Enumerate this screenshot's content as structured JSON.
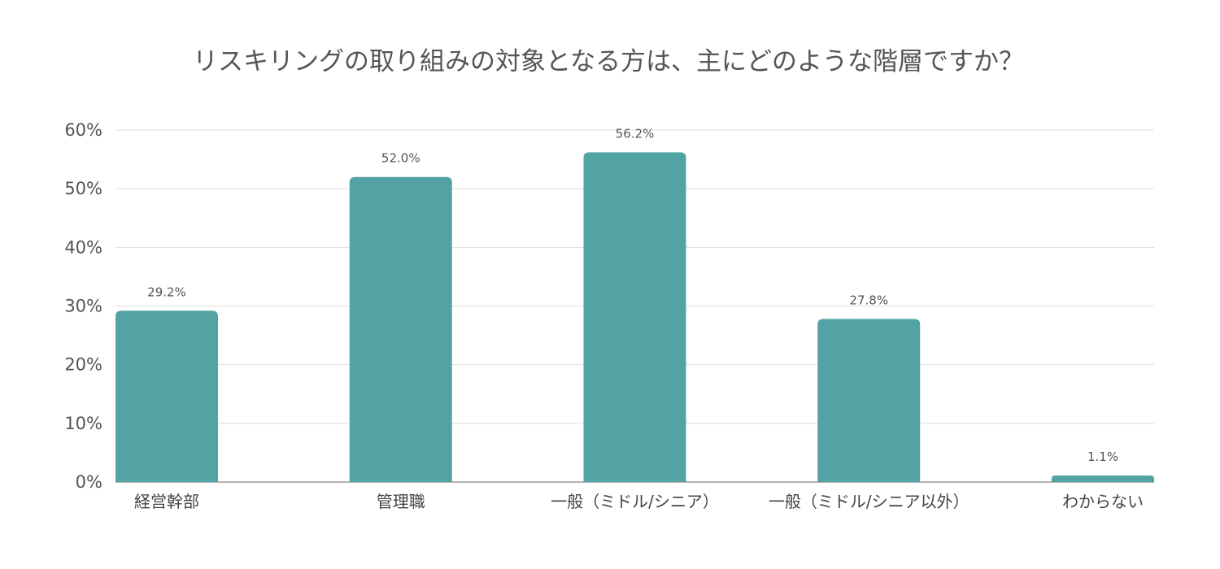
{
  "chart_data": {
    "type": "bar",
    "title": "リスキリングの取り組みの対象となる方は、主にどのような階層ですか？",
    "categories": [
      "経営幹部",
      "管理職",
      "一般（ミドル/シニア）",
      "一般（ミドル/シニア以外）",
      "わからない"
    ],
    "values": [
      29.2,
      52.0,
      56.2,
      27.8,
      1.1
    ],
    "data_labels": [
      "29.2%",
      "52.0%",
      "56.2%",
      "27.8%",
      "1.1%"
    ],
    "y_ticks": [
      "0%",
      "10%",
      "20%",
      "30%",
      "40%",
      "50%",
      "60%"
    ],
    "y_tick_values": [
      0,
      10,
      20,
      30,
      40,
      50,
      60
    ],
    "ylim": [
      0,
      60
    ],
    "xlabel": "",
    "ylabel": "",
    "grid": true,
    "legend": "none",
    "bar_color": "#53a3a5"
  }
}
